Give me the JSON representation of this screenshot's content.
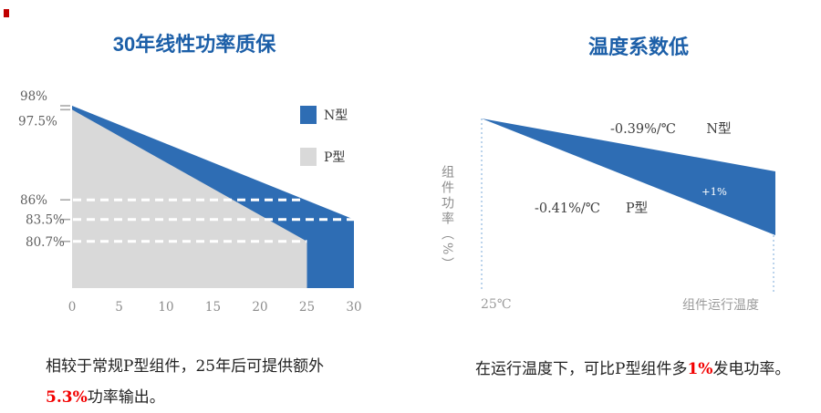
{
  "page": {
    "background": "#ffffff",
    "accent_blue": "#2E6DB4",
    "p_type_gray": "#D9D9D9",
    "title_blue": "#1C5FA8",
    "highlight_red": "#F20000",
    "brand_mark_color": "#C00000"
  },
  "left_panel": {
    "title": "30年线性功率质保",
    "legend": [
      {
        "label": "N型",
        "color": "#2E6DB4"
      },
      {
        "label": "P型",
        "color": "#D9D9D9"
      }
    ],
    "caption": {
      "line1": "相较于常规P型组件，25年后可提供额外",
      "highlight": "5.3%",
      "line2_rest": "功率输出。"
    }
  },
  "right_panel": {
    "title": "温度系数低",
    "y_axis_label": "组件功率（%）",
    "x_start_label": "25℃",
    "x_axis_label": "组件运行温度",
    "n_coefficient": "-0.39%/℃",
    "n_name": "N型",
    "p_coefficient": "-0.41%/℃",
    "p_name": "P型",
    "gain_label": "+1%",
    "caption": {
      "prefix": "在运行温度下，可比P型组件多",
      "highlight": "1%",
      "suffix": "发电功率。"
    }
  },
  "chart_data": [
    {
      "type": "area",
      "title": "30年线性功率质保",
      "grid": false,
      "legend_position": "top-right",
      "x_ticks": [
        0,
        5,
        10,
        15,
        20,
        25,
        30
      ],
      "xlim": [
        0,
        30
      ],
      "ylim_bottom_pct": 74.7,
      "y_ticks": [
        {
          "value": 98,
          "label": "98%"
        },
        {
          "value": 97.5,
          "label": "97.5%"
        },
        {
          "value": 86,
          "label": "86%"
        },
        {
          "value": 83.5,
          "label": "83.5%"
        },
        {
          "value": 80.7,
          "label": "80.7%"
        }
      ],
      "series": [
        {
          "name": "N型",
          "color": "#2E6DB4",
          "start_year": 0,
          "start_pct": 98,
          "end_year": 30,
          "end_pct": 83.5
        },
        {
          "name": "P型",
          "color": "#D9D9D9",
          "start_year": 0,
          "start_pct": 97.5,
          "end_year": 25,
          "end_pct": 80.7
        }
      ],
      "dashed_guides": [
        {
          "value": 86,
          "label": "86%",
          "ends_at": "n-edge"
        },
        {
          "value": 83.5,
          "label": "83.5%",
          "ends_at": "n-end"
        },
        {
          "value": 80.7,
          "label": "80.7%",
          "ends_at": "p-end"
        }
      ]
    },
    {
      "type": "area",
      "title": "温度系数低",
      "grid": false,
      "ylabel": "组件功率（%）",
      "x_range_labels": [
        "25℃",
        "组件运行温度"
      ],
      "series": [
        {
          "name": "N型",
          "temp_coefficient": "-0.39%/℃"
        },
        {
          "name": "P型",
          "temp_coefficient": "-0.41%/℃"
        }
      ],
      "annotation": "+1%",
      "wedge_color": "#2E6DB4",
      "reference_line_color": "#8FB8E0"
    }
  ]
}
